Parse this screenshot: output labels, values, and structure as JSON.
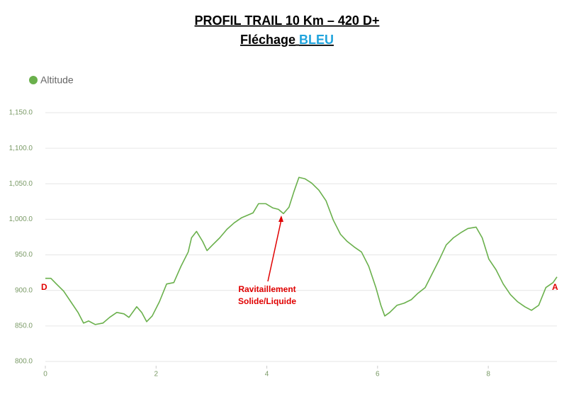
{
  "chart_data": {
    "type": "line",
    "title": "PROFIL TRAIL 10 Km – 420 D+",
    "subtitle": {
      "text": "Fléchage",
      "highlight": "BLEU",
      "highlight_color": "#1fa3dc"
    },
    "xlim": [
      0,
      9.24
    ],
    "xticks": [
      0,
      2,
      4,
      6,
      8
    ],
    "ylim": [
      800,
      1150
    ],
    "yticks": [
      {
        "value": 800,
        "label": "800.0"
      },
      {
        "value": 850,
        "label": "850.0"
      },
      {
        "value": 900,
        "label": "900.0"
      },
      {
        "value": 950,
        "label": "950.0"
      },
      {
        "value": 1000,
        "label": "1,000.0"
      },
      {
        "value": 1050,
        "label": "1,050.0"
      },
      {
        "value": 1100,
        "label": "1,100.0"
      },
      {
        "value": 1150,
        "label": "1,150.0"
      }
    ],
    "grid": true,
    "legend": "top-left",
    "annotations": {
      "start": "D",
      "end": "A",
      "note": [
        "Ravitaillement",
        "Solide/Liquide"
      ],
      "color": "#e00000"
    },
    "x": [
      0,
      0.1,
      0.2,
      0.33,
      0.46,
      0.59,
      0.69,
      0.78,
      0.9,
      1.04,
      1.16,
      1.29,
      1.42,
      1.51,
      1.65,
      1.74,
      1.83,
      1.93,
      2.06,
      2.19,
      2.32,
      2.45,
      2.58,
      2.64,
      2.73,
      2.84,
      2.92,
      3.02,
      3.15,
      3.28,
      3.41,
      3.54,
      3.66,
      3.75,
      3.85,
      3.98,
      4.11,
      4.21,
      4.3,
      4.4,
      4.49,
      4.58,
      4.69,
      4.81,
      4.94,
      5.07,
      5.2,
      5.33,
      5.45,
      5.58,
      5.71,
      5.84,
      5.97,
      6.06,
      6.13,
      6.22,
      6.35,
      6.48,
      6.61,
      6.73,
      6.86,
      6.99,
      7.12,
      7.24,
      7.37,
      7.5,
      7.63,
      7.78,
      7.89,
      8.01,
      8.14,
      8.27,
      8.4,
      8.53,
      8.66,
      8.78,
      8.91,
      9.04,
      9.17,
      9.24
    ],
    "series": [
      {
        "name": "Altitude",
        "color": "#6ab04c",
        "values": [
          917,
          917,
          909,
          899,
          884,
          869,
          854,
          857,
          852,
          854,
          862,
          869,
          867,
          862,
          877,
          869,
          856,
          864,
          884,
          909,
          911,
          934,
          954,
          974,
          983,
          969,
          956,
          964,
          974,
          986,
          995,
          1002,
          1006,
          1009,
          1022,
          1022,
          1016,
          1014,
          1008,
          1017,
          1039,
          1059,
          1057,
          1051,
          1041,
          1026,
          999,
          979,
          969,
          961,
          954,
          934,
          904,
          879,
          864,
          869,
          879,
          882,
          887,
          896,
          904,
          924,
          944,
          964,
          974,
          981,
          987,
          989,
          974,
          944,
          929,
          909,
          894,
          884,
          877,
          872,
          879,
          904,
          911,
          919
        ]
      }
    ]
  }
}
